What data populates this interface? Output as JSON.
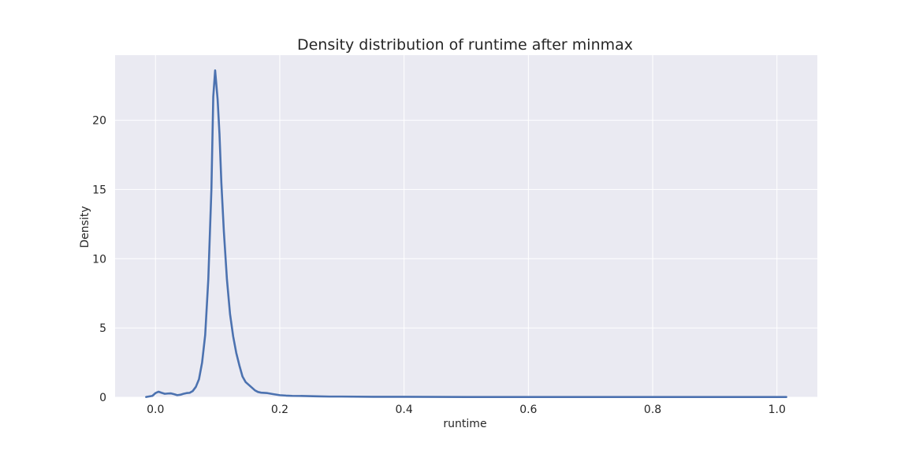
{
  "chart_data": {
    "type": "line",
    "title": "Density distribution of runtime after minmax",
    "xlabel": "runtime",
    "ylabel": "Density",
    "xlim": [
      -0.065,
      1.065
    ],
    "ylim": [
      0,
      24.7
    ],
    "xticks": [
      0.0,
      0.2,
      0.4,
      0.6,
      0.8,
      1.0
    ],
    "xtick_labels": [
      "0.0",
      "0.2",
      "0.4",
      "0.6",
      "0.8",
      "1.0"
    ],
    "yticks": [
      0,
      5,
      10,
      15,
      20
    ],
    "ytick_labels": [
      "0",
      "5",
      "10",
      "15",
      "20"
    ],
    "grid": true,
    "background": "#eaeaf2",
    "grid_color": "#ffffff",
    "series": [
      {
        "color": "#4c72b0",
        "x": [
          -0.015,
          -0.005,
          0.0,
          0.005,
          0.01,
          0.015,
          0.02,
          0.025,
          0.03,
          0.035,
          0.04,
          0.045,
          0.05,
          0.055,
          0.06,
          0.065,
          0.07,
          0.075,
          0.08,
          0.085,
          0.09,
          0.093,
          0.096,
          0.1,
          0.103,
          0.106,
          0.11,
          0.115,
          0.12,
          0.125,
          0.13,
          0.135,
          0.14,
          0.145,
          0.15,
          0.155,
          0.16,
          0.165,
          0.17,
          0.18,
          0.19,
          0.2,
          0.21,
          0.22,
          0.24,
          0.26,
          0.28,
          0.3,
          0.35,
          0.4,
          0.5,
          0.6,
          0.7,
          0.8,
          0.9,
          1.0,
          1.015
        ],
        "y": [
          0.02,
          0.1,
          0.3,
          0.4,
          0.32,
          0.25,
          0.27,
          0.28,
          0.22,
          0.15,
          0.18,
          0.25,
          0.3,
          0.32,
          0.45,
          0.75,
          1.3,
          2.5,
          4.5,
          8.5,
          15.0,
          21.7,
          23.6,
          21.5,
          19.0,
          15.5,
          12.0,
          8.5,
          6.0,
          4.4,
          3.2,
          2.3,
          1.5,
          1.1,
          0.9,
          0.7,
          0.5,
          0.38,
          0.33,
          0.3,
          0.22,
          0.15,
          0.12,
          0.1,
          0.09,
          0.07,
          0.05,
          0.05,
          0.03,
          0.03,
          0.02,
          0.02,
          0.02,
          0.02,
          0.02,
          0.02,
          0.02
        ]
      }
    ]
  }
}
